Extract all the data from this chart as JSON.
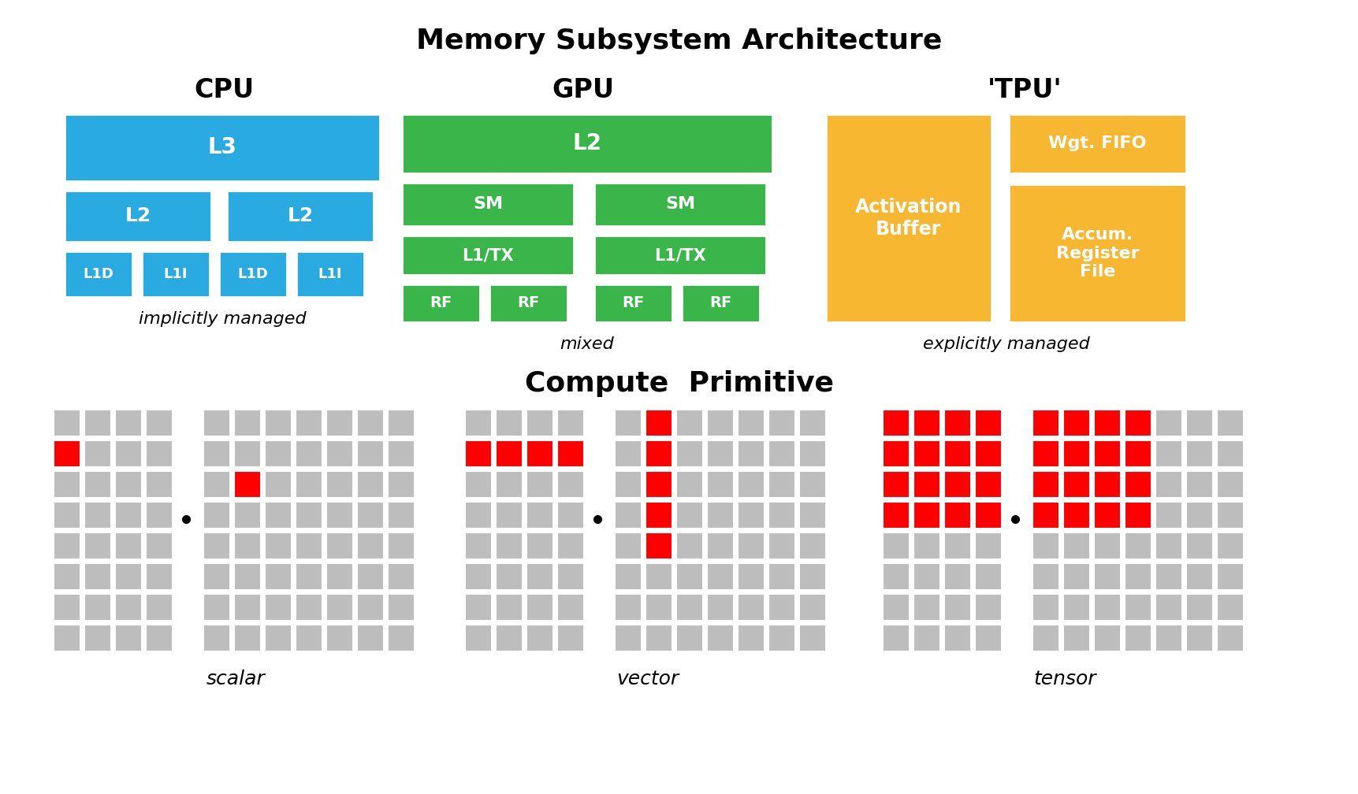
{
  "title_memory": "Memory Subsystem Architecture",
  "title_compute": "Compute  Primitive",
  "bg_color": "#ffffff",
  "cpu_color": "#29abe2",
  "gpu_color": "#39b54a",
  "tpu_color": "#f7b731",
  "red_color": "#ff0000",
  "gray_color": "#bdbdbd",
  "white": "#ffffff",
  "black": "#000000",
  "cpu_sublabel": "implicitly managed",
  "gpu_sublabel": "mixed",
  "tpu_sublabel": "explicitly managed",
  "scalar_label": "scalar",
  "vector_label": "vector",
  "tensor_label": "tensor"
}
